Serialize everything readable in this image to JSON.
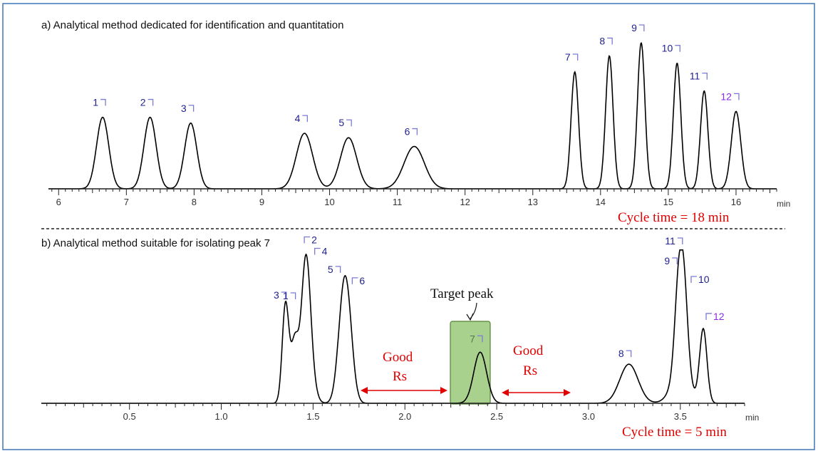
{
  "colors": {
    "frame": "#4a7ebb",
    "trace": "#000000",
    "peak_label": "#1f1f8f",
    "peak_label_alt": "#8a2be2",
    "bracket": "#7b7bd6",
    "annotation_red": "#e00000",
    "target_fill": "#a9d18e",
    "target_stroke": "#548235",
    "target_label": "#4f7a4f"
  },
  "chart_data": [
    {
      "type": "line",
      "title": "a) Analytical method dedicated for identification and quantitation",
      "xlabel": "min",
      "xlim": [
        5.85,
        16.6
      ],
      "ylim": [
        0,
        1.0
      ],
      "x_ticks": [
        6,
        7,
        8,
        9,
        10,
        11,
        12,
        13,
        14,
        15,
        16
      ],
      "x_tick_labels": [
        "6",
        "7",
        "8",
        "9",
        "10",
        "11",
        "12",
        "13",
        "14",
        "15",
        "16"
      ],
      "cycle_time": "Cycle time = 18 min",
      "peaks": [
        {
          "label": "1",
          "rt": 6.65,
          "height": 0.49,
          "sigma": 0.09
        },
        {
          "label": "2",
          "rt": 7.35,
          "height": 0.49,
          "sigma": 0.09
        },
        {
          "label": "3",
          "rt": 7.95,
          "height": 0.45,
          "sigma": 0.09
        },
        {
          "label": "4",
          "rt": 9.63,
          "height": 0.38,
          "sigma": 0.12
        },
        {
          "label": "5",
          "rt": 10.28,
          "height": 0.35,
          "sigma": 0.12
        },
        {
          "label": "6",
          "rt": 11.25,
          "height": 0.29,
          "sigma": 0.15
        },
        {
          "label": "7",
          "rt": 13.62,
          "height": 0.8,
          "sigma": 0.055
        },
        {
          "label": "8",
          "rt": 14.13,
          "height": 0.91,
          "sigma": 0.055
        },
        {
          "label": "9",
          "rt": 14.6,
          "height": 1.0,
          "sigma": 0.055
        },
        {
          "label": "10",
          "rt": 15.13,
          "height": 0.86,
          "sigma": 0.055
        },
        {
          "label": "11",
          "rt": 15.53,
          "height": 0.67,
          "sigma": 0.055
        },
        {
          "label": "12",
          "rt": 16.0,
          "height": 0.53,
          "sigma": 0.07
        }
      ]
    },
    {
      "type": "line",
      "title": "b) Analytical method suitable for isolating peak 7",
      "xlabel": "min",
      "xlim": [
        0.02,
        3.85
      ],
      "ylim": [
        0,
        1.0
      ],
      "x_ticks": [
        0.5,
        1.0,
        1.5,
        2.0,
        2.5,
        3.0,
        3.5
      ],
      "x_tick_labels": [
        "0.5",
        "1.0",
        "1.5",
        "2.0",
        "2.5",
        "3.0",
        "3.5"
      ],
      "cycle_time": "Cycle time = 5 min",
      "target_label": "Target peak",
      "good_rs": [
        "Good",
        "Rs"
      ],
      "peaks": [
        {
          "label": "3",
          "rt": 1.35,
          "height": 0.66,
          "sigma": 0.018,
          "visible": true
        },
        {
          "label": "1",
          "rt": 1.4,
          "height": 0.4,
          "sigma": 0.02,
          "visible": true
        },
        {
          "label": "2",
          "rt": 1.46,
          "height": 0.7,
          "sigma": 0.024,
          "visible": true
        },
        {
          "label": "4",
          "rt": 1.47,
          "height": 0.3,
          "sigma": 0.03,
          "visible": true
        },
        {
          "label": "5",
          "rt": 1.66,
          "height": 0.5,
          "sigma": 0.028,
          "visible": true
        },
        {
          "label": "6",
          "rt": 1.69,
          "height": 0.48,
          "sigma": 0.028,
          "visible": true
        },
        {
          "label": "7",
          "rt": 2.41,
          "height": 0.34,
          "sigma": 0.035,
          "visible": true
        },
        {
          "label": "8",
          "rt": 3.22,
          "height": 0.26,
          "sigma": 0.05,
          "visible": true
        },
        {
          "label": "9",
          "rt": 3.49,
          "height": 0.55,
          "sigma": 0.022,
          "visible": true
        },
        {
          "label": "10",
          "rt": 3.52,
          "height": 0.56,
          "sigma": 0.022,
          "visible": true
        },
        {
          "label": "11",
          "rt": 3.5,
          "height": 0.18,
          "sigma": 0.05,
          "visible": true
        },
        {
          "label": "12",
          "rt": 3.625,
          "height": 0.49,
          "sigma": 0.02,
          "visible": true
        }
      ]
    }
  ]
}
